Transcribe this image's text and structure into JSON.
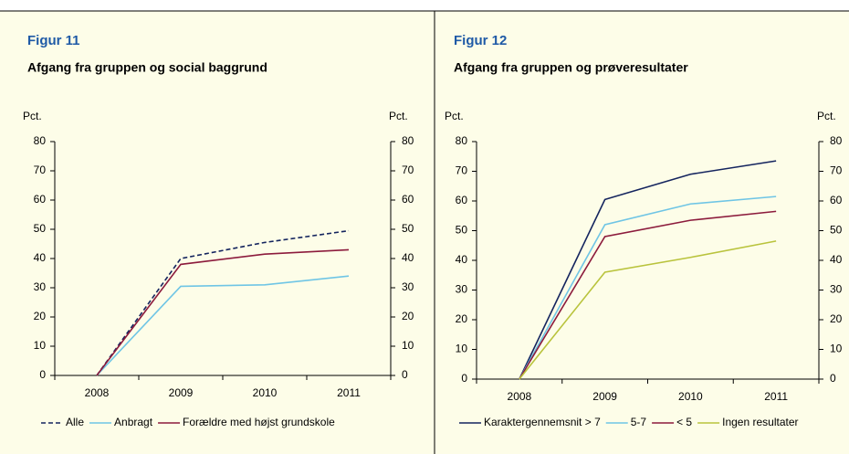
{
  "chart_data": [
    {
      "type": "line",
      "figure": "Figur 11",
      "title": "Afgang fra gruppen og social baggrund",
      "ylabel": "Pct.",
      "y2label": "Pct.",
      "categories": [
        "2008",
        "2009",
        "2010",
        "2011"
      ],
      "ylim": [
        0,
        80
      ],
      "yticks": [
        0,
        10,
        20,
        30,
        40,
        50,
        60,
        70,
        80
      ],
      "y2lim": [
        0,
        80
      ],
      "y2ticks": [
        0,
        10,
        20,
        30,
        40,
        50,
        60,
        70,
        80
      ],
      "legend": "bottom",
      "series": [
        {
          "name": "Alle",
          "color": "#14245e",
          "dashed": true,
          "values": [
            0,
            40,
            45.5,
            49.5
          ]
        },
        {
          "name": "Anbragt",
          "color": "#6fc5e5",
          "values": [
            0,
            30.5,
            31,
            34
          ]
        },
        {
          "name": "Forældre med højst grundskole",
          "color": "#8c1b3c",
          "values": [
            0,
            38,
            41.5,
            43
          ]
        }
      ]
    },
    {
      "type": "line",
      "figure": "Figur 12",
      "title": "Afgang fra gruppen og prøveresultater",
      "ylabel": "Pct.",
      "y2label": "Pct.",
      "categories": [
        "2008",
        "2009",
        "2010",
        "2011"
      ],
      "ylim": [
        0,
        80
      ],
      "yticks": [
        0,
        10,
        20,
        30,
        40,
        50,
        60,
        70,
        80
      ],
      "y2lim": [
        0,
        80
      ],
      "y2ticks": [
        0,
        10,
        20,
        30,
        40,
        50,
        60,
        70,
        80
      ],
      "legend": "bottom",
      "series": [
        {
          "name": "Karaktergennemsnit > 7",
          "color": "#14245e",
          "values": [
            0,
            60.5,
            69,
            73.5
          ]
        },
        {
          "name": "5-7",
          "color": "#6fc5e5",
          "values": [
            0,
            52,
            59,
            61.5
          ]
        },
        {
          "name": "< 5",
          "color": "#8c1b3c",
          "values": [
            0,
            48,
            53.5,
            56.5
          ]
        },
        {
          "name": "Ingen resultater",
          "color": "#b9c33c",
          "values": [
            0,
            36,
            41,
            46.5
          ]
        }
      ]
    }
  ]
}
